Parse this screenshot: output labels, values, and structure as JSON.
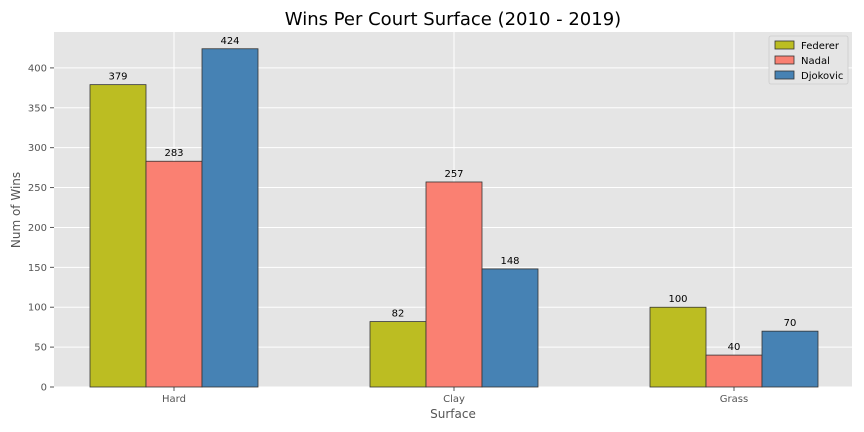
{
  "chart_data": {
    "type": "bar",
    "title": "Wins Per Court Surface (2010 - 2019)",
    "xlabel": "Surface",
    "ylabel": "Num of Wins",
    "categories": [
      "Hard",
      "Clay",
      "Grass"
    ],
    "series": [
      {
        "name": "Federer",
        "values": [
          379,
          82,
          100
        ],
        "color": "#bcbd22"
      },
      {
        "name": "Nadal",
        "values": [
          283,
          257,
          40
        ],
        "color": "#fa8072"
      },
      {
        "name": "Djokovic",
        "values": [
          424,
          148,
          70
        ],
        "color": "#4682b4"
      }
    ],
    "ylim": [
      0,
      445
    ],
    "yticks": [
      0,
      50,
      100,
      150,
      200,
      250,
      300,
      350,
      400
    ],
    "grid": true,
    "legend_position": "top-right",
    "background": "#e5e5e5",
    "grid_color": "#ffffff"
  }
}
